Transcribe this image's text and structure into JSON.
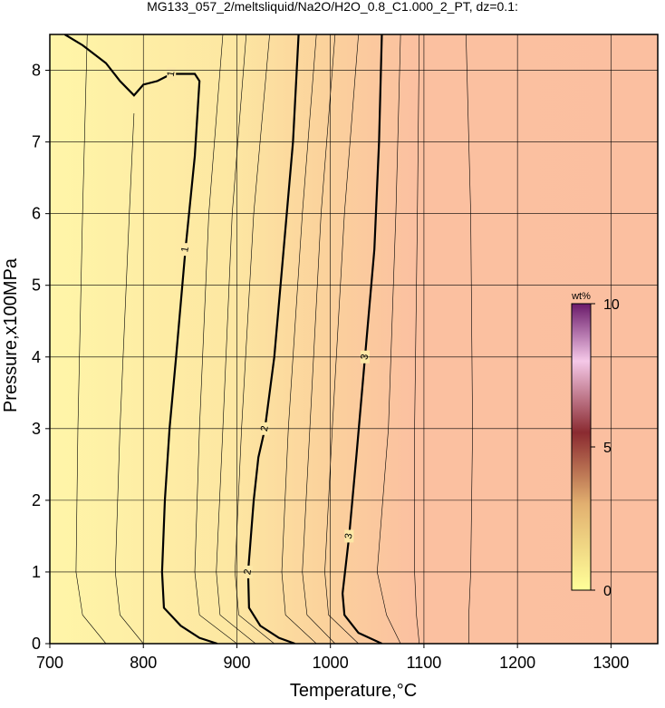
{
  "chart_data": {
    "type": "contour",
    "title": "MG133_057_2/meltsliquid/Na2O/H2O_0.8_C1.000_2_PT, dz=0.1:",
    "x_label": "Temperature,°C",
    "y_label": "Pressure,x100MPa",
    "xlim": [
      700,
      1350
    ],
    "ylim": [
      0,
      8.5
    ],
    "xticks": [
      700,
      800,
      900,
      1000,
      1100,
      1200,
      1300
    ],
    "yticks": [
      0,
      1,
      2,
      3,
      4,
      5,
      6,
      7,
      8
    ],
    "grid": true,
    "contours": [
      {
        "level": 1,
        "x": [
          716,
          735,
          760,
          775,
          790,
          800,
          815,
          830,
          855,
          860,
          855,
          845,
          835,
          828,
          823,
          820,
          822,
          840,
          860,
          879
        ],
        "y": [
          8.5,
          8.35,
          8.1,
          7.85,
          7.65,
          7.8,
          7.85,
          7.95,
          7.95,
          7.85,
          6.8,
          5.5,
          4.0,
          3.0,
          2.0,
          1.0,
          0.5,
          0.25,
          0.08,
          0
        ]
      },
      {
        "level": 2,
        "x": [
          966,
          960,
          950,
          940,
          930,
          923,
          918,
          912,
          913,
          925,
          945,
          962
        ],
        "y": [
          8.5,
          7.0,
          5.5,
          4.0,
          3.0,
          2.6,
          2.0,
          1.0,
          0.5,
          0.25,
          0.08,
          0
        ]
      },
      {
        "level": 3,
        "x": [
          1055,
          1052,
          1047,
          1037,
          1028,
          1020,
          1013,
          1015,
          1030,
          1055
        ],
        "y": [
          8.5,
          7.0,
          5.5,
          4.0,
          2.65,
          1.5,
          0.7,
          0.4,
          0.15,
          0
        ]
      }
    ],
    "minor_contours": [
      {
        "x": [
          740,
          735,
          730,
          728,
          735,
          760
        ],
        "y": [
          8.5,
          6.0,
          3.0,
          1.0,
          0.4,
          0
        ]
      },
      {
        "x": [
          790,
          785,
          775,
          770,
          775,
          800
        ],
        "y": [
          7.4,
          6.0,
          3.0,
          1.0,
          0.4,
          0
        ]
      },
      {
        "x": [
          885,
          870,
          860,
          855,
          860,
          900
        ],
        "y": [
          8.5,
          6.0,
          3.0,
          1.0,
          0.4,
          0
        ]
      },
      {
        "x": [
          910,
          895,
          885,
          878,
          882,
          920
        ],
        "y": [
          8.5,
          6.0,
          3.0,
          1.0,
          0.4,
          0
        ]
      },
      {
        "x": [
          935,
          918,
          905,
          898,
          902,
          940
        ],
        "y": [
          8.5,
          6.0,
          3.0,
          1.0,
          0.4,
          0
        ]
      },
      {
        "x": [
          985,
          970,
          955,
          948,
          952,
          985
        ],
        "y": [
          8.5,
          6.0,
          3.0,
          1.0,
          0.4,
          0
        ]
      },
      {
        "x": [
          1005,
          990,
          978,
          970,
          975,
          1005
        ],
        "y": [
          8.5,
          6.0,
          3.0,
          1.0,
          0.4,
          0
        ]
      },
      {
        "x": [
          1030,
          1015,
          1002,
          994,
          998,
          1030
        ],
        "y": [
          8.5,
          6.0,
          3.0,
          1.0,
          0.4,
          0
        ]
      },
      {
        "x": [
          1075,
          1070,
          1062,
          1050,
          1060,
          1075
        ],
        "y": [
          8.5,
          6.0,
          3.0,
          1.0,
          0.4,
          0
        ]
      },
      {
        "x": [
          1095,
          1093,
          1090,
          1090,
          1092,
          1095
        ],
        "y": [
          8.5,
          6.0,
          3.0,
          1.0,
          0.4,
          0
        ]
      },
      {
        "x": [
          1145,
          1150,
          1152,
          1150,
          1148,
          1148
        ],
        "y": [
          8.5,
          6.0,
          3.0,
          1.0,
          0.4,
          0
        ]
      }
    ],
    "colorbar": {
      "label": "wt%",
      "lim": [
        0,
        10
      ],
      "ticks": [
        0,
        5,
        10
      ]
    }
  }
}
